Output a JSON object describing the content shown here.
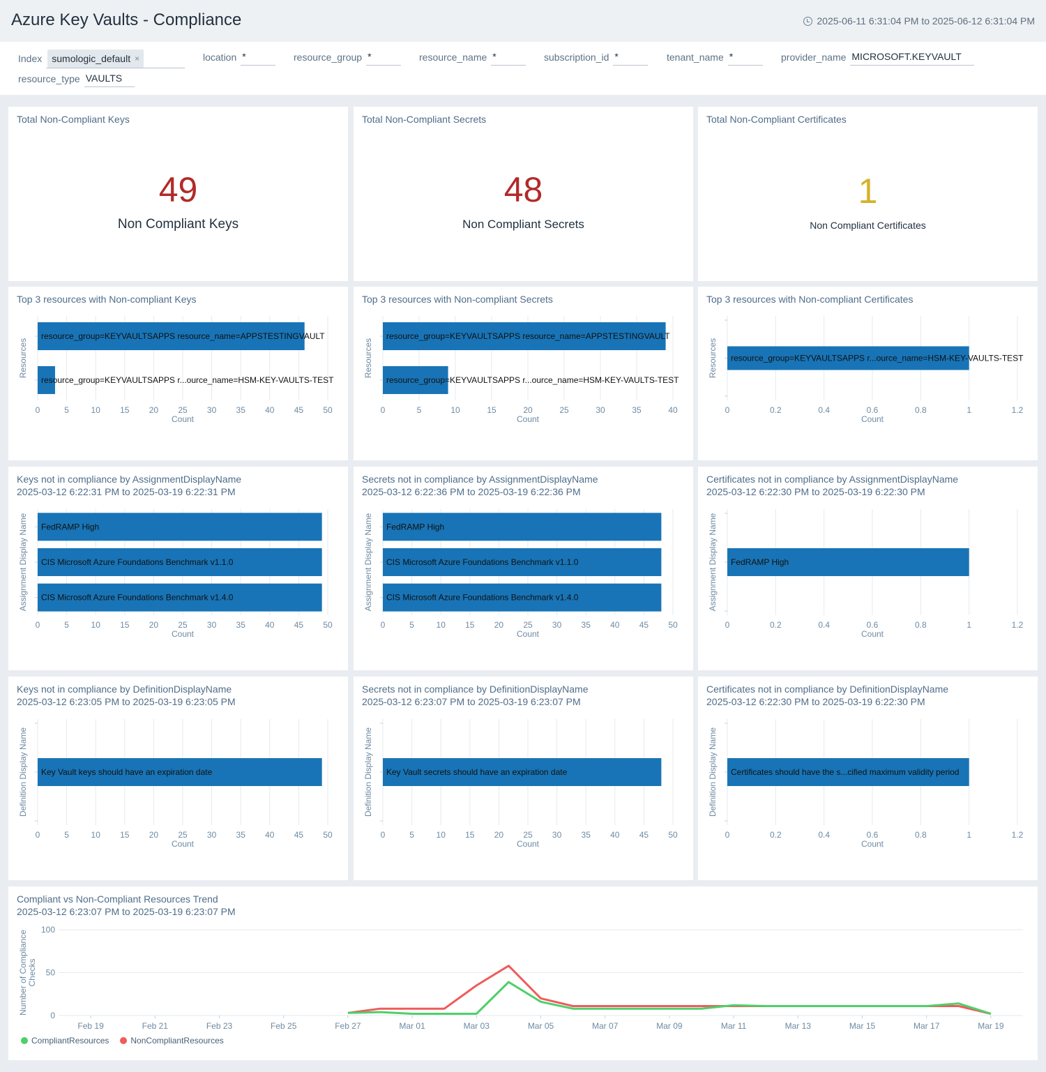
{
  "header": {
    "title": "Azure Key Vaults - Compliance",
    "time_range": "2025-06-11 6:31:04 PM to 2025-06-12 6:31:04 PM"
  },
  "filters": {
    "index": {
      "label": "Index",
      "chip": "sumologic_default",
      "chip_remove": "×"
    },
    "location": {
      "label": "location",
      "value": "*"
    },
    "resource_group": {
      "label": "resource_group",
      "value": "*"
    },
    "resource_name": {
      "label": "resource_name",
      "value": "*"
    },
    "subscription_id": {
      "label": "subscription_id",
      "value": "*"
    },
    "tenant_name": {
      "label": "tenant_name",
      "value": "*"
    },
    "provider_name": {
      "label": "provider_name",
      "value": "MICROSOFT.KEYVAULT"
    },
    "resource_type": {
      "label": "resource_type",
      "value": "VAULTS"
    }
  },
  "colors": {
    "red": "#b22a2a",
    "yellow": "#d4b22a",
    "bar": "#1874b6",
    "compliant": "#4fcf6a",
    "noncompliant": "#f05b5b"
  },
  "singles": [
    {
      "title": "Total Non-Compliant Keys",
      "value": "49",
      "subtitle": "Non Compliant Keys",
      "color": "#b22a2a"
    },
    {
      "title": "Total Non-Compliant Secrets",
      "value": "48",
      "subtitle": "Non Compliant Secrets",
      "color": "#b22a2a"
    },
    {
      "title": "Total Non-Compliant Certificates",
      "value": "1",
      "subtitle": "Non Compliant Certificates",
      "color": "#d4b22a"
    }
  ],
  "chart_data": [
    {
      "type": "bar",
      "orientation": "horizontal",
      "title": "Top 3 resources with Non-compliant Keys",
      "subtitle": "",
      "xlabel": "Count",
      "ylabel": "Resources",
      "xlim": [
        0,
        50
      ],
      "xticks": [
        0,
        5,
        10,
        15,
        20,
        25,
        30,
        35,
        40,
        45,
        50
      ],
      "xtick_labels": [
        "0",
        "5",
        "10",
        "15",
        "20",
        "25",
        "30",
        "35",
        "40",
        "45",
        "50"
      ],
      "categories": [
        "resource_group=KEYVAULTSAPPS resource_name=APPSTESTINGVAULT",
        "resource_group=KEYVAULTSAPPS r...ource_name=HSM-KEY-VAULTS-TEST"
      ],
      "values": [
        46,
        3
      ]
    },
    {
      "type": "bar",
      "orientation": "horizontal",
      "title": "Top 3 resources with Non-compliant Secrets",
      "subtitle": "",
      "xlabel": "Count",
      "ylabel": "Resources",
      "xlim": [
        0,
        40
      ],
      "xticks": [
        0,
        5,
        10,
        15,
        20,
        25,
        30,
        35,
        40
      ],
      "xtick_labels": [
        "0",
        "5",
        "10",
        "15",
        "20",
        "25",
        "30",
        "35",
        "40"
      ],
      "categories": [
        "resource_group=KEYVAULTSAPPS resource_name=APPSTESTINGVAULT",
        "resource_group=KEYVAULTSAPPS r...ource_name=HSM-KEY-VAULTS-TEST"
      ],
      "values": [
        39,
        9
      ]
    },
    {
      "type": "bar",
      "orientation": "horizontal",
      "title": "Top 3 resources with Non-compliant Certificates",
      "subtitle": "",
      "xlabel": "Count",
      "ylabel": "Resources",
      "xlim": [
        0,
        1.2
      ],
      "xticks": [
        0,
        0.2,
        0.4,
        0.6,
        0.8,
        1,
        1.2
      ],
      "xtick_labels": [
        "0",
        "0.2",
        "0.4",
        "0.6",
        "0.8",
        "1",
        "1.2"
      ],
      "categories": [
        "resource_group=KEYVAULTSAPPS r...ource_name=HSM-KEY-VAULTS-TEST"
      ],
      "values": [
        1
      ]
    },
    {
      "type": "bar",
      "orientation": "horizontal",
      "title": "Keys not in compliance by AssignmentDisplayName",
      "subtitle": "2025-03-12 6:22:31 PM to 2025-03-19 6:22:31 PM",
      "xlabel": "Count",
      "ylabel": "Assignment Display Name",
      "xlim": [
        0,
        50
      ],
      "xticks": [
        0,
        5,
        10,
        15,
        20,
        25,
        30,
        35,
        40,
        45,
        50
      ],
      "xtick_labels": [
        "0",
        "5",
        "10",
        "15",
        "20",
        "25",
        "30",
        "35",
        "40",
        "45",
        "50"
      ],
      "categories": [
        "FedRAMP High",
        "CIS Microsoft Azure Foundations Benchmark v1.1.0",
        "CIS Microsoft Azure Foundations Benchmark v1.4.0"
      ],
      "values": [
        49,
        49,
        49
      ]
    },
    {
      "type": "bar",
      "orientation": "horizontal",
      "title": "Secrets not in compliance by AssignmentDisplayName",
      "subtitle": "2025-03-12 6:22:36 PM to 2025-03-19 6:22:36 PM",
      "xlabel": "Count",
      "ylabel": "Assignment Display Name",
      "xlim": [
        0,
        50
      ],
      "xticks": [
        0,
        5,
        10,
        15,
        20,
        25,
        30,
        35,
        40,
        45,
        50
      ],
      "xtick_labels": [
        "0",
        "5",
        "10",
        "15",
        "20",
        "25",
        "30",
        "35",
        "40",
        "45",
        "50"
      ],
      "categories": [
        "FedRAMP High",
        "CIS Microsoft Azure Foundations Benchmark v1.1.0",
        "CIS Microsoft Azure Foundations Benchmark v1.4.0"
      ],
      "values": [
        48,
        48,
        48
      ]
    },
    {
      "type": "bar",
      "orientation": "horizontal",
      "title": "Certificates not in compliance by AssignmentDisplayName",
      "subtitle": "2025-03-12 6:22:30 PM to 2025-03-19 6:22:30 PM",
      "xlabel": "Count",
      "ylabel": "Assignment Display Name",
      "xlim": [
        0,
        1.2
      ],
      "xticks": [
        0,
        0.2,
        0.4,
        0.6,
        0.8,
        1,
        1.2
      ],
      "xtick_labels": [
        "0",
        "0.2",
        "0.4",
        "0.6",
        "0.8",
        "1",
        "1.2"
      ],
      "categories": [
        "FedRAMP High"
      ],
      "values": [
        1
      ]
    },
    {
      "type": "bar",
      "orientation": "horizontal",
      "title": "Keys not in compliance by DefinitionDisplayName",
      "subtitle": "2025-03-12 6:23:05 PM to 2025-03-19 6:23:05 PM",
      "xlabel": "Count",
      "ylabel": "Definition Display Name",
      "xlim": [
        0,
        50
      ],
      "xticks": [
        0,
        5,
        10,
        15,
        20,
        25,
        30,
        35,
        40,
        45,
        50
      ],
      "xtick_labels": [
        "0",
        "5",
        "10",
        "15",
        "20",
        "25",
        "30",
        "35",
        "40",
        "45",
        "50"
      ],
      "categories": [
        "Key Vault keys should have an expiration date"
      ],
      "values": [
        49
      ]
    },
    {
      "type": "bar",
      "orientation": "horizontal",
      "title": "Secrets not in compliance by DefinitionDisplayName",
      "subtitle": "2025-03-12 6:23:07 PM to 2025-03-19 6:23:07 PM",
      "xlabel": "Count",
      "ylabel": "Definition Display Name",
      "xlim": [
        0,
        50
      ],
      "xticks": [
        0,
        5,
        10,
        15,
        20,
        25,
        30,
        35,
        40,
        45,
        50
      ],
      "xtick_labels": [
        "0",
        "5",
        "10",
        "15",
        "20",
        "25",
        "30",
        "35",
        "40",
        "45",
        "50"
      ],
      "categories": [
        "Key Vault secrets should have an expiration date"
      ],
      "values": [
        48
      ]
    },
    {
      "type": "bar",
      "orientation": "horizontal",
      "title": "Certificates not in compliance by DefinitionDisplayName",
      "subtitle": "2025-03-12 6:22:30 PM to 2025-03-19 6:22:30 PM",
      "xlabel": "Count",
      "ylabel": "Definition Display Name",
      "xlim": [
        0,
        1.2
      ],
      "xticks": [
        0,
        0.2,
        0.4,
        0.6,
        0.8,
        1,
        1.2
      ],
      "xtick_labels": [
        "0",
        "0.2",
        "0.4",
        "0.6",
        "0.8",
        "1",
        "1.2"
      ],
      "categories": [
        "Certificates should have the s...cified maximum validity period"
      ],
      "values": [
        1
      ]
    },
    {
      "type": "line",
      "title": "Compliant vs Non-Compliant Resources Trend",
      "subtitle": "2025-03-12 6:23:07 PM to 2025-03-19 6:23:07 PM",
      "xlabel": "",
      "ylabel": "Number of Compliance Checks",
      "ylim": [
        0,
        100
      ],
      "yticks": [
        0,
        50,
        100
      ],
      "xlim": [
        "2025-02-18",
        "2025-03-20"
      ],
      "xtick_labels": [
        "Feb 19",
        "Feb 21",
        "Feb 23",
        "Feb 25",
        "Feb 27",
        "Mar 01",
        "Mar 03",
        "Mar 05",
        "Mar 07",
        "Mar 09",
        "Mar 11",
        "Mar 13",
        "Mar 15",
        "Mar 17",
        "Mar 19"
      ],
      "x": [
        "2025-02-27",
        "2025-02-28",
        "2025-03-01",
        "2025-03-02",
        "2025-03-03",
        "2025-03-04",
        "2025-03-05",
        "2025-03-06",
        "2025-03-07",
        "2025-03-08",
        "2025-03-09",
        "2025-03-10",
        "2025-03-11",
        "2025-03-12",
        "2025-03-13",
        "2025-03-14",
        "2025-03-15",
        "2025-03-16",
        "2025-03-17",
        "2025-03-18",
        "2025-03-19"
      ],
      "series": [
        {
          "name": "CompliantResources",
          "color": "#4fcf6a",
          "values": [
            3,
            4,
            2,
            2,
            2,
            39,
            16,
            8,
            8,
            8,
            8,
            8,
            12,
            11,
            11,
            11,
            11,
            11,
            11,
            14,
            2
          ]
        },
        {
          "name": "NonCompliantResources",
          "color": "#f05b5b",
          "values": [
            3,
            8,
            8,
            8,
            35,
            58,
            20,
            11,
            11,
            11,
            11,
            11,
            11,
            11,
            11,
            11,
            11,
            11,
            11,
            11,
            2
          ]
        }
      ]
    }
  ]
}
